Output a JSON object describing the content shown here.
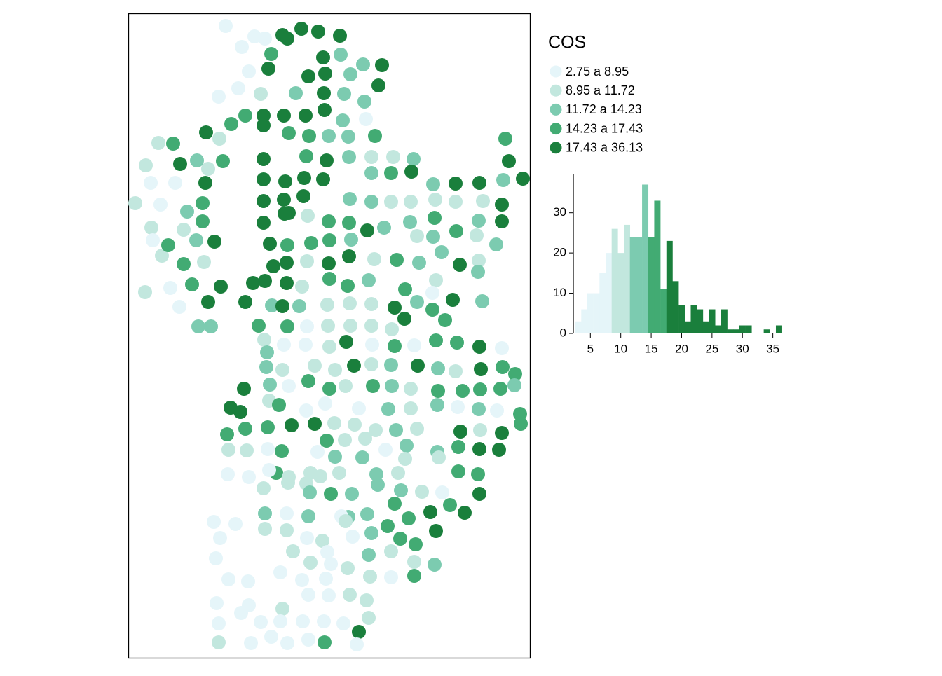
{
  "legend": {
    "title": "COS",
    "labels": [
      "2.75  a  8.95",
      "8.95  a  11.72",
      "11.72  a  14.23",
      "14.23  a  17.43",
      "17.43  a  36.13"
    ],
    "breaks": [
      2.75,
      8.95,
      11.72,
      14.23,
      17.43,
      36.13
    ],
    "colors": [
      "#e5f5f9",
      "#c2e7de",
      "#7ccbb0",
      "#42ab73",
      "#1a7f3c"
    ]
  },
  "histogram": {
    "type": "histogram",
    "bins": [
      2.5,
      3.5,
      4.5,
      5.5,
      6.5,
      7.5,
      8.5,
      9.5,
      10.5,
      11.5,
      12.5,
      13.5,
      14.5,
      15.5,
      16.5,
      17.5,
      18.5,
      19.5,
      20.5,
      21.5,
      22.5,
      23.5,
      24.5,
      25.5,
      26.5,
      27.5,
      28.5,
      29.5,
      30.5,
      31.5,
      32.5,
      33.5,
      34.5,
      35.5,
      36.5
    ],
    "counts": [
      3,
      6,
      10,
      10,
      15,
      20,
      26,
      20,
      27,
      24,
      24,
      37,
      24,
      33,
      11,
      23,
      13,
      7,
      3,
      7,
      6,
      3,
      6,
      2,
      6,
      1,
      1,
      2,
      2,
      0,
      0,
      1,
      0,
      2
    ],
    "xlim": [
      2.2,
      37
    ],
    "ylim": [
      0,
      39
    ],
    "xticks": [
      5,
      10,
      15,
      20,
      25,
      30,
      35
    ],
    "yticks": [
      0,
      10,
      20,
      30
    ]
  },
  "map": {
    "points": [
      [
        322,
        37,
        1
      ],
      [
        363,
        52,
        1
      ],
      [
        378,
        55,
        1
      ],
      [
        403,
        50,
        5
      ],
      [
        410,
        55,
        5
      ],
      [
        430,
        41,
        5
      ],
      [
        454,
        45,
        5
      ],
      [
        485,
        51,
        5
      ],
      [
        345,
        67,
        1
      ],
      [
        387,
        77,
        4
      ],
      [
        461,
        82,
        5
      ],
      [
        486,
        78,
        3
      ],
      [
        518,
        92,
        3
      ],
      [
        545,
        93,
        5
      ],
      [
        383,
        98,
        5
      ],
      [
        355,
        102,
        1
      ],
      [
        464,
        105,
        5
      ],
      [
        500,
        106,
        3
      ],
      [
        440,
        109,
        5
      ],
      [
        340,
        126,
        1
      ],
      [
        540,
        122,
        5
      ],
      [
        372,
        134,
        2
      ],
      [
        422,
        133,
        3
      ],
      [
        462,
        133,
        5
      ],
      [
        491,
        134,
        3
      ],
      [
        312,
        138,
        1
      ],
      [
        520,
        145,
        3
      ],
      [
        350,
        165,
        4
      ],
      [
        376,
        165,
        5
      ],
      [
        405,
        165,
        5
      ],
      [
        436,
        165,
        5
      ],
      [
        463,
        157,
        5
      ],
      [
        489,
        172,
        3
      ],
      [
        522,
        170,
        1
      ],
      [
        330,
        177,
        4
      ],
      [
        376,
        179,
        5
      ],
      [
        294,
        189,
        5
      ],
      [
        313,
        198,
        2
      ],
      [
        412,
        190,
        4
      ],
      [
        441,
        194,
        4
      ],
      [
        469,
        194,
        3
      ],
      [
        497,
        195,
        3
      ],
      [
        535,
        194,
        4
      ],
      [
        226,
        204,
        2
      ],
      [
        247,
        205,
        4
      ],
      [
        721,
        198,
        4
      ],
      [
        281,
        229,
        3
      ],
      [
        318,
        230,
        4
      ],
      [
        376,
        227,
        5
      ],
      [
        437,
        223,
        4
      ],
      [
        466,
        229,
        5
      ],
      [
        498,
        224,
        3
      ],
      [
        530,
        224,
        2
      ],
      [
        561,
        224,
        2
      ],
      [
        590,
        227,
        3
      ],
      [
        726,
        230,
        5
      ],
      [
        208,
        236,
        2
      ],
      [
        257,
        234,
        5
      ],
      [
        297,
        241,
        2
      ],
      [
        376,
        256,
        5
      ],
      [
        434,
        254,
        5
      ],
      [
        461,
        256,
        5
      ],
      [
        407,
        259,
        5
      ],
      [
        530,
        247,
        3
      ],
      [
        558,
        247,
        4
      ],
      [
        587,
        245,
        5
      ],
      [
        746,
        255,
        5
      ],
      [
        718,
        257,
        3
      ],
      [
        215,
        261,
        1
      ],
      [
        250,
        261,
        1
      ],
      [
        293,
        261,
        5
      ],
      [
        618,
        263,
        3
      ],
      [
        650,
        262,
        5
      ],
      [
        684,
        261,
        5
      ],
      [
        376,
        287,
        5
      ],
      [
        405,
        285,
        5
      ],
      [
        433,
        280,
        5
      ],
      [
        499,
        284,
        3
      ],
      [
        530,
        288,
        3
      ],
      [
        558,
        288,
        2
      ],
      [
        586,
        288,
        2
      ],
      [
        621,
        285,
        2
      ],
      [
        650,
        288,
        2
      ],
      [
        689,
        287,
        2
      ],
      [
        193,
        290,
        2
      ],
      [
        229,
        292,
        1
      ],
      [
        289,
        290,
        4
      ],
      [
        716,
        292,
        5
      ],
      [
        267,
        302,
        3
      ],
      [
        412,
        304,
        5
      ],
      [
        439,
        308,
        2
      ],
      [
        469,
        316,
        4
      ],
      [
        498,
        318,
        4
      ],
      [
        620,
        311,
        4
      ],
      [
        683,
        315,
        3
      ],
      [
        716,
        316,
        5
      ],
      [
        376,
        318,
        5
      ],
      [
        406,
        305,
        5
      ],
      [
        524,
        329,
        5
      ],
      [
        548,
        325,
        3
      ],
      [
        585,
        317,
        3
      ],
      [
        216,
        325,
        2
      ],
      [
        262,
        328,
        2
      ],
      [
        289,
        316,
        4
      ],
      [
        651,
        330,
        4
      ],
      [
        595,
        337,
        2
      ],
      [
        618,
        338,
        3
      ],
      [
        680,
        336,
        2
      ],
      [
        218,
        343,
        1
      ],
      [
        280,
        343,
        3
      ],
      [
        306,
        345,
        5
      ],
      [
        385,
        348,
        5
      ],
      [
        410,
        350,
        4
      ],
      [
        444,
        347,
        4
      ],
      [
        470,
        343,
        4
      ],
      [
        501,
        342,
        3
      ],
      [
        231,
        365,
        2
      ],
      [
        240,
        350,
        4
      ],
      [
        630,
        360,
        3
      ],
      [
        708,
        349,
        3
      ],
      [
        262,
        377,
        4
      ],
      [
        291,
        374,
        2
      ],
      [
        390,
        380,
        5
      ],
      [
        409,
        375,
        5
      ],
      [
        438,
        373,
        2
      ],
      [
        469,
        376,
        5
      ],
      [
        498,
        366,
        5
      ],
      [
        534,
        370,
        2
      ],
      [
        566,
        371,
        4
      ],
      [
        598,
        375,
        3
      ],
      [
        683,
        372,
        2
      ],
      [
        656,
        378,
        5
      ],
      [
        682,
        388,
        3
      ],
      [
        274,
        406,
        4
      ],
      [
        315,
        409,
        5
      ],
      [
        361,
        404,
        5
      ],
      [
        378,
        401,
        5
      ],
      [
        409,
        404,
        5
      ],
      [
        470,
        398,
        4
      ],
      [
        526,
        400,
        3
      ],
      [
        622,
        400,
        2
      ],
      [
        496,
        408,
        4
      ],
      [
        578,
        413,
        4
      ],
      [
        431,
        409,
        2
      ],
      [
        243,
        411,
        1
      ],
      [
        207,
        417,
        2
      ],
      [
        617,
        418,
        1
      ],
      [
        297,
        431,
        5
      ],
      [
        350,
        431,
        5
      ],
      [
        388,
        436,
        3
      ],
      [
        403,
        437,
        5
      ],
      [
        427,
        437,
        3
      ],
      [
        467,
        435,
        2
      ],
      [
        499,
        433,
        2
      ],
      [
        530,
        434,
        2
      ],
      [
        563,
        439,
        5
      ],
      [
        595,
        431,
        3
      ],
      [
        646,
        428,
        5
      ],
      [
        688,
        430,
        3
      ],
      [
        256,
        438,
        1
      ],
      [
        617,
        442,
        4
      ],
      [
        577,
        455,
        5
      ],
      [
        635,
        457,
        4
      ],
      [
        283,
        466,
        3
      ],
      [
        301,
        466,
        3
      ],
      [
        369,
        465,
        4
      ],
      [
        410,
        466,
        4
      ],
      [
        438,
        466,
        1
      ],
      [
        468,
        465,
        2
      ],
      [
        500,
        465,
        2
      ],
      [
        530,
        465,
        2
      ],
      [
        559,
        470,
        2
      ],
      [
        377,
        485,
        2
      ],
      [
        405,
        492,
        1
      ],
      [
        436,
        492,
        1
      ],
      [
        470,
        495,
        2
      ],
      [
        494,
        488,
        5
      ],
      [
        531,
        492,
        1
      ],
      [
        563,
        494,
        4
      ],
      [
        591,
        493,
        1
      ],
      [
        622,
        486,
        4
      ],
      [
        652,
        489,
        4
      ],
      [
        684,
        495,
        5
      ],
      [
        716,
        497,
        1
      ],
      [
        381,
        503,
        3
      ],
      [
        380,
        524,
        3
      ],
      [
        403,
        528,
        2
      ],
      [
        449,
        522,
        2
      ],
      [
        478,
        528,
        2
      ],
      [
        505,
        522,
        5
      ],
      [
        530,
        520,
        2
      ],
      [
        558,
        521,
        3
      ],
      [
        596,
        522,
        5
      ],
      [
        625,
        526,
        3
      ],
      [
        650,
        530,
        2
      ],
      [
        686,
        527,
        5
      ],
      [
        717,
        524,
        4
      ],
      [
        735,
        534,
        4
      ],
      [
        385,
        549,
        3
      ],
      [
        412,
        551,
        1
      ],
      [
        440,
        544,
        4
      ],
      [
        470,
        555,
        4
      ],
      [
        493,
        551,
        2
      ],
      [
        532,
        551,
        4
      ],
      [
        559,
        551,
        3
      ],
      [
        586,
        555,
        2
      ],
      [
        625,
        558,
        4
      ],
      [
        660,
        558,
        4
      ],
      [
        685,
        556,
        4
      ],
      [
        714,
        555,
        4
      ],
      [
        734,
        550,
        3
      ],
      [
        348,
        555,
        5
      ],
      [
        384,
        572,
        2
      ],
      [
        398,
        578,
        4
      ],
      [
        464,
        576,
        1
      ],
      [
        437,
        586,
        1
      ],
      [
        512,
        583,
        1
      ],
      [
        624,
        578,
        3
      ],
      [
        653,
        581,
        1
      ],
      [
        683,
        584,
        3
      ],
      [
        709,
        586,
        1
      ],
      [
        329,
        582,
        5
      ],
      [
        343,
        588,
        5
      ],
      [
        554,
        584,
        3
      ],
      [
        586,
        583,
        2
      ],
      [
        742,
        591,
        4
      ],
      [
        350,
        612,
        4
      ],
      [
        382,
        610,
        4
      ],
      [
        416,
        607,
        5
      ],
      [
        449,
        605,
        5
      ],
      [
        477,
        604,
        2
      ],
      [
        506,
        606,
        2
      ],
      [
        536,
        614,
        2
      ],
      [
        565,
        614,
        3
      ],
      [
        595,
        612,
        2
      ],
      [
        743,
        605,
        4
      ],
      [
        685,
        614,
        2
      ],
      [
        657,
        616,
        5
      ],
      [
        716,
        618,
        5
      ],
      [
        324,
        620,
        4
      ],
      [
        466,
        629,
        4
      ],
      [
        326,
        642,
        2
      ],
      [
        352,
        643,
        2
      ],
      [
        382,
        641,
        1
      ],
      [
        402,
        644,
        4
      ],
      [
        453,
        645,
        1
      ],
      [
        492,
        628,
        2
      ],
      [
        521,
        626,
        2
      ],
      [
        550,
        642,
        1
      ],
      [
        580,
        636,
        3
      ],
      [
        624,
        645,
        3
      ],
      [
        654,
        638,
        4
      ],
      [
        684,
        641,
        5
      ],
      [
        712,
        642,
        5
      ],
      [
        478,
        652,
        3
      ],
      [
        517,
        653,
        3
      ],
      [
        578,
        655,
        2
      ],
      [
        626,
        653,
        2
      ],
      [
        394,
        675,
        4
      ],
      [
        443,
        675,
        2
      ],
      [
        484,
        675,
        2
      ],
      [
        568,
        675,
        2
      ],
      [
        325,
        677,
        1
      ],
      [
        355,
        681,
        1
      ],
      [
        412,
        681,
        2
      ],
      [
        682,
        677,
        4
      ],
      [
        537,
        677,
        3
      ],
      [
        654,
        673,
        4
      ],
      [
        384,
        671,
        1
      ],
      [
        411,
        689,
        2
      ],
      [
        437,
        690,
        2
      ],
      [
        457,
        680,
        2
      ],
      [
        376,
        697,
        2
      ],
      [
        442,
        703,
        3
      ],
      [
        472,
        705,
        4
      ],
      [
        502,
        705,
        3
      ],
      [
        539,
        692,
        3
      ],
      [
        572,
        700,
        3
      ],
      [
        602,
        702,
        2
      ],
      [
        631,
        703,
        1
      ],
      [
        684,
        705,
        5
      ],
      [
        378,
        733,
        3
      ],
      [
        409,
        733,
        1
      ],
      [
        497,
        738,
        3
      ],
      [
        563,
        719,
        4
      ],
      [
        614,
        731,
        5
      ],
      [
        642,
        721,
        4
      ],
      [
        663,
        732,
        5
      ],
      [
        524,
        734,
        3
      ],
      [
        440,
        737,
        3
      ],
      [
        305,
        745,
        1
      ],
      [
        336,
        748,
        1
      ],
      [
        378,
        755,
        2
      ],
      [
        409,
        757,
        2
      ],
      [
        487,
        737,
        1
      ],
      [
        493,
        744,
        2
      ],
      [
        553,
        751,
        4
      ],
      [
        583,
        740,
        4
      ],
      [
        622,
        758,
        5
      ],
      [
        314,
        768,
        1
      ],
      [
        438,
        768,
        1
      ],
      [
        460,
        772,
        2
      ],
      [
        503,
        766,
        1
      ],
      [
        530,
        761,
        3
      ],
      [
        571,
        769,
        4
      ],
      [
        593,
        777,
        4
      ],
      [
        418,
        787,
        2
      ],
      [
        467,
        788,
        1
      ],
      [
        526,
        792,
        3
      ],
      [
        558,
        787,
        2
      ],
      [
        308,
        797,
        1
      ],
      [
        443,
        803,
        2
      ],
      [
        472,
        805,
        1
      ],
      [
        496,
        811,
        2
      ],
      [
        591,
        802,
        2
      ],
      [
        620,
        806,
        3
      ],
      [
        400,
        817,
        1
      ],
      [
        528,
        823,
        2
      ],
      [
        326,
        827,
        1
      ],
      [
        354,
        830,
        1
      ],
      [
        431,
        828,
        1
      ],
      [
        465,
        826,
        1
      ],
      [
        558,
        824,
        1
      ],
      [
        591,
        822,
        4
      ],
      [
        440,
        849,
        1
      ],
      [
        469,
        850,
        1
      ],
      [
        499,
        849,
        2
      ],
      [
        523,
        857,
        2
      ],
      [
        309,
        861,
        1
      ],
      [
        526,
        882,
        2
      ],
      [
        355,
        864,
        1
      ],
      [
        403,
        869,
        2
      ],
      [
        344,
        875,
        1
      ],
      [
        372,
        888,
        1
      ],
      [
        312,
        890,
        1
      ],
      [
        400,
        887,
        1
      ],
      [
        432,
        887,
        1
      ],
      [
        462,
        887,
        1
      ],
      [
        490,
        890,
        1
      ],
      [
        512,
        902,
        5
      ],
      [
        387,
        909,
        1
      ],
      [
        312,
        917,
        2
      ],
      [
        358,
        918,
        1
      ],
      [
        410,
        918,
        1
      ],
      [
        440,
        913,
        1
      ],
      [
        463,
        917,
        4
      ],
      [
        509,
        920,
        1
      ]
    ]
  }
}
